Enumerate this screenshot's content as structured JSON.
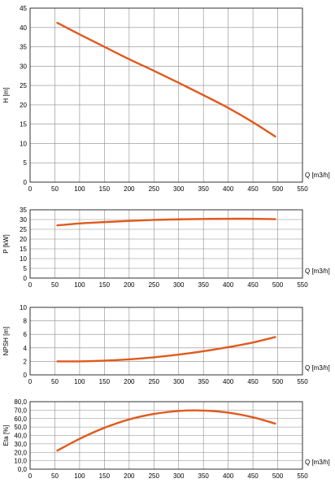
{
  "chart_data": [
    {
      "type": "line",
      "ylabel": "H [m]",
      "xlabel": "Q [m3/h]",
      "xlim": [
        0,
        550
      ],
      "ylim": [
        0,
        45
      ],
      "xticks": [
        0,
        50,
        100,
        150,
        200,
        250,
        300,
        350,
        400,
        450,
        500,
        550
      ],
      "yticks": [
        0,
        5,
        10,
        15,
        20,
        25,
        30,
        35,
        40,
        45
      ],
      "tick_labels_x": [
        "0",
        "50",
        "100",
        "150",
        "200",
        "250",
        "300",
        "350",
        "400",
        "450",
        "500",
        "550"
      ],
      "tick_labels_y": [
        "0",
        "5",
        "10",
        "15",
        "20",
        "25",
        "30",
        "35",
        "40",
        "45"
      ],
      "grid": true,
      "color": "#e05a1e",
      "series": [
        {
          "x": [
            55,
            100,
            150,
            200,
            250,
            300,
            350,
            400,
            450,
            495
          ],
          "y": [
            41.2,
            38.2,
            35.0,
            31.8,
            28.8,
            25.7,
            22.5,
            19.2,
            15.5,
            11.8
          ]
        }
      ]
    },
    {
      "type": "line",
      "ylabel": "P [kW]",
      "xlabel": "Q [m3/h]",
      "xlim": [
        0,
        550
      ],
      "ylim": [
        0,
        35
      ],
      "xticks": [
        0,
        50,
        100,
        150,
        200,
        250,
        300,
        350,
        400,
        450,
        500,
        550
      ],
      "yticks": [
        0,
        5,
        10,
        15,
        20,
        25,
        30,
        35
      ],
      "tick_labels_x": [
        "0",
        "50",
        "100",
        "150",
        "200",
        "250",
        "300",
        "350",
        "400",
        "450",
        "500",
        "550"
      ],
      "tick_labels_y": [
        "0",
        "5",
        "10",
        "15",
        "20",
        "25",
        "30",
        "35"
      ],
      "grid": true,
      "color": "#e05a1e",
      "series": [
        {
          "x": [
            55,
            100,
            150,
            200,
            250,
            300,
            350,
            400,
            450,
            495
          ],
          "y": [
            27.0,
            28.0,
            28.7,
            29.3,
            29.8,
            30.1,
            30.3,
            30.4,
            30.4,
            30.2
          ]
        }
      ]
    },
    {
      "type": "line",
      "ylabel": "NPSH [m]",
      "xlabel": "Q [m3/h]",
      "xlim": [
        0,
        550
      ],
      "ylim": [
        0,
        10
      ],
      "xticks": [
        0,
        50,
        100,
        150,
        200,
        250,
        300,
        350,
        400,
        450,
        500,
        550
      ],
      "yticks": [
        0,
        2,
        4,
        6,
        8,
        10
      ],
      "tick_labels_x": [
        "0",
        "50",
        "100",
        "150",
        "200",
        "250",
        "300",
        "350",
        "400",
        "450",
        "500",
        "550"
      ],
      "tick_labels_y": [
        "0",
        "2",
        "4",
        "6",
        "8",
        "10"
      ],
      "grid": true,
      "color": "#e05a1e",
      "series": [
        {
          "x": [
            55,
            100,
            150,
            200,
            250,
            300,
            350,
            400,
            450,
            495
          ],
          "y": [
            2.0,
            2.0,
            2.1,
            2.3,
            2.6,
            3.0,
            3.5,
            4.1,
            4.8,
            5.6
          ]
        }
      ]
    },
    {
      "type": "line",
      "ylabel": "Eta [%]",
      "xlabel": "Q [m3/h]",
      "xlim": [
        0,
        550
      ],
      "ylim": [
        0,
        80
      ],
      "xticks": [
        0,
        50,
        100,
        150,
        200,
        250,
        300,
        350,
        400,
        450,
        500,
        550
      ],
      "yticks": [
        0,
        10,
        20,
        30,
        40,
        50,
        60,
        70,
        80
      ],
      "tick_labels_x": [
        "0",
        "50",
        "100",
        "150",
        "200",
        "250",
        "300",
        "350",
        "400",
        "450",
        "500",
        "550"
      ],
      "tick_labels_y": [
        "0,0",
        "10,0",
        "20,0",
        "30,0",
        "40,0",
        "50,0",
        "60,0",
        "70,0",
        "80,0"
      ],
      "grid": true,
      "color": "#e05a1e",
      "series": [
        {
          "x": [
            55,
            100,
            150,
            200,
            250,
            300,
            350,
            400,
            450,
            495
          ],
          "y": [
            22.0,
            36.0,
            49.0,
            59.0,
            65.5,
            69.0,
            69.5,
            67.0,
            61.5,
            54.0
          ]
        }
      ]
    }
  ]
}
